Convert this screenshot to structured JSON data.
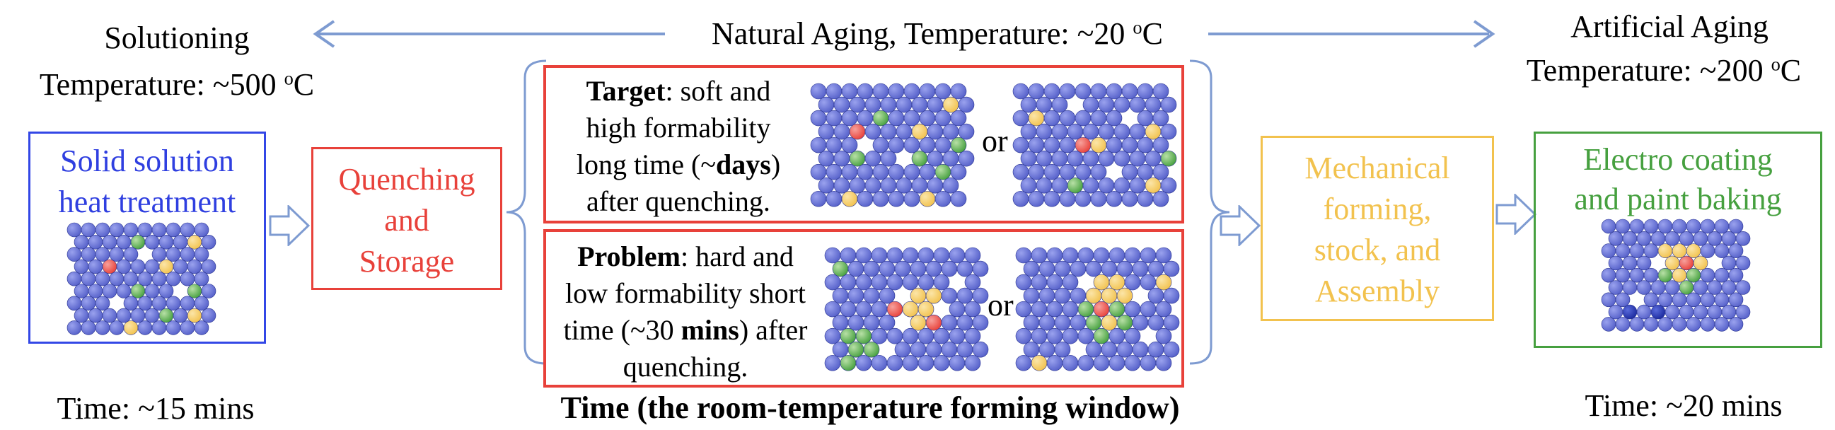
{
  "colors": {
    "blue": "#2F3FE0",
    "red": "#E8413A",
    "orange": "#F2C24E",
    "green": "#46A03F",
    "arrow_blue": "#7E9BD1",
    "atom": "#5560C9"
  },
  "solutioning": {
    "title": "Solutioning",
    "temperature_prefix": "Temperature: ~500 ",
    "temperature_sup": "o",
    "temperature_unit": "C",
    "box_line1": "Solid solution",
    "box_line2": "heat treatment",
    "time": "Time: ~15 mins"
  },
  "natural_aging": {
    "label_prefix": "Natural Aging, Temperature: ~20 ",
    "label_sup": "o",
    "label_unit": "C"
  },
  "artificial_aging": {
    "title": "Artificial Aging",
    "temperature_prefix": "Temperature: ~200 ",
    "temperature_sup": "o",
    "temperature_unit": "C",
    "time": "Time: ~20 mins"
  },
  "quenching": {
    "line1": "Quenching",
    "line2": "and",
    "line3": "Storage"
  },
  "target": {
    "keyword": "Target",
    "line1_rest": ": soft and",
    "line2": "high formability",
    "line3_prefix": "long time (~",
    "line3_bold": "days",
    "line3_suffix": ")",
    "line4": "after quenching.",
    "or": "or"
  },
  "problem": {
    "keyword": "Problem",
    "line1_rest": ": hard and",
    "line2": "low formability short",
    "line3_prefix": "time (~30 ",
    "line3_bold": "mins",
    "line3_suffix": ") after",
    "line4": "quenching.",
    "or": "or"
  },
  "mechanical": {
    "line1": "Mechanical",
    "line2": "forming,",
    "line3": "stock,  and",
    "line4": "Assembly"
  },
  "electro": {
    "line1": "Electro coating",
    "line2": "and paint baking"
  },
  "window_caption": "Time (the room-temperature forming window)"
}
